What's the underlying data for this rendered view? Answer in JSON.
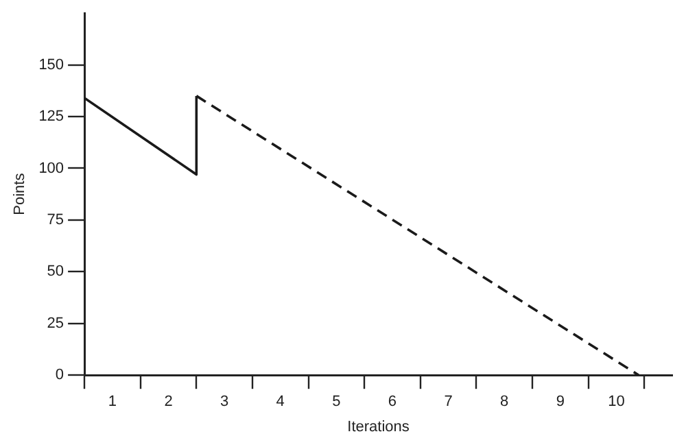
{
  "chart_data": {
    "type": "line",
    "xlabel": "Iterations",
    "ylabel": "Points",
    "xlim": [
      0,
      10.5
    ],
    "ylim": [
      0,
      175
    ],
    "xticks": [
      {
        "value": 0,
        "label": null
      },
      {
        "value": 0.5,
        "label": "1"
      },
      {
        "value": 1,
        "label": null
      },
      {
        "value": 1.5,
        "label": "2"
      },
      {
        "value": 2,
        "label": null
      },
      {
        "value": 2.5,
        "label": "3"
      },
      {
        "value": 3,
        "label": null
      },
      {
        "value": 3.5,
        "label": "4"
      },
      {
        "value": 4,
        "label": null
      },
      {
        "value": 4.5,
        "label": "5"
      },
      {
        "value": 5,
        "label": null
      },
      {
        "value": 5.5,
        "label": "6"
      },
      {
        "value": 6,
        "label": null
      },
      {
        "value": 6.5,
        "label": "7"
      },
      {
        "value": 7,
        "label": null
      },
      {
        "value": 7.5,
        "label": "8"
      },
      {
        "value": 8,
        "label": null
      },
      {
        "value": 8.5,
        "label": "9"
      },
      {
        "value": 9,
        "label": null
      },
      {
        "value": 9.5,
        "label": "10"
      },
      {
        "value": 10,
        "label": null
      }
    ],
    "yticks": [
      0,
      25,
      50,
      75,
      100,
      125,
      150
    ],
    "grid": false,
    "legend": false,
    "marker": "none",
    "series": [
      {
        "color": "#1a1a1a",
        "line_style": "solid",
        "x": [
          0,
          2,
          2
        ],
        "values": [
          134,
          97,
          135
        ]
      },
      {
        "color": "#1a1a1a",
        "line_style": "dashed",
        "x": [
          2,
          9.9
        ],
        "values": [
          135,
          0
        ]
      }
    ]
  }
}
